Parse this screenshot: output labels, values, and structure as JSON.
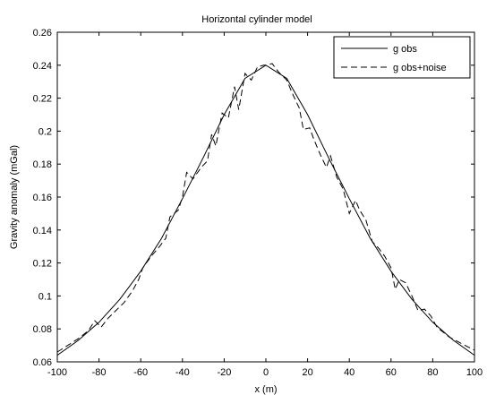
{
  "chart_data": {
    "type": "line",
    "title": "Horizontal cylinder model",
    "xlabel": "x (m)",
    "ylabel": "Gravity anomaly (mGal)",
    "xlim": [
      -100,
      100
    ],
    "ylim": [
      0.06,
      0.26
    ],
    "xticks": [
      -100,
      -80,
      -60,
      -40,
      -20,
      0,
      20,
      40,
      60,
      80,
      100
    ],
    "yticks": [
      0.06,
      0.08,
      0.1,
      0.12,
      0.14,
      0.16,
      0.18,
      0.2,
      0.22,
      0.24,
      0.26
    ],
    "xtick_labels": [
      "-100",
      "-80",
      "-60",
      "-40",
      "-20",
      "0",
      "20",
      "40",
      "60",
      "80",
      "100"
    ],
    "ytick_labels": [
      "0.06",
      "0.08",
      "0.1",
      "0.12",
      "0.14",
      "0.16",
      "0.18",
      "0.2",
      "0.22",
      "0.24",
      "0.26"
    ],
    "grid": false,
    "legend_position": "top-right",
    "series": [
      {
        "name": "g obs",
        "style": "solid",
        "color": "#000000",
        "x": [
          -100,
          -90,
          -80,
          -70,
          -60,
          -50,
          -40,
          -30,
          -20,
          -10,
          0,
          10,
          20,
          30,
          40,
          50,
          60,
          70,
          80,
          90,
          100
        ],
        "y": [
          0.064,
          0.073,
          0.084,
          0.098,
          0.115,
          0.135,
          0.159,
          0.184,
          0.21,
          0.232,
          0.24,
          0.232,
          0.21,
          0.184,
          0.159,
          0.135,
          0.115,
          0.098,
          0.084,
          0.073,
          0.064
        ]
      },
      {
        "name": "g obs+noise",
        "style": "dashed",
        "color": "#000000",
        "x": [
          -100,
          -95,
          -90,
          -85,
          -82,
          -79,
          -76,
          -72,
          -68,
          -64,
          -61,
          -59,
          -55,
          -51,
          -48,
          -46,
          -42,
          -40,
          -38,
          -35,
          -31,
          -28,
          -26,
          -24,
          -21,
          -18,
          -15,
          -13,
          -10,
          -7,
          -4,
          -1,
          0,
          3,
          6,
          10,
          13,
          16,
          18,
          21,
          23,
          26,
          29,
          31,
          34,
          37,
          40,
          43,
          45,
          48,
          51,
          54,
          57,
          60,
          62,
          64,
          67,
          70,
          73,
          76,
          79,
          82,
          85,
          88,
          91,
          94,
          97,
          100
        ],
        "y": [
          0.066,
          0.07,
          0.074,
          0.079,
          0.085,
          0.081,
          0.086,
          0.091,
          0.096,
          0.103,
          0.11,
          0.117,
          0.124,
          0.13,
          0.135,
          0.148,
          0.152,
          0.16,
          0.175,
          0.171,
          0.178,
          0.182,
          0.198,
          0.191,
          0.211,
          0.208,
          0.227,
          0.213,
          0.235,
          0.231,
          0.239,
          0.24,
          0.24,
          0.241,
          0.236,
          0.231,
          0.222,
          0.214,
          0.201,
          0.202,
          0.195,
          0.186,
          0.178,
          0.185,
          0.172,
          0.165,
          0.15,
          0.158,
          0.152,
          0.146,
          0.133,
          0.129,
          0.124,
          0.117,
          0.104,
          0.11,
          0.108,
          0.1,
          0.091,
          0.092,
          0.088,
          0.081,
          0.078,
          0.075,
          0.073,
          0.071,
          0.069,
          0.067
        ]
      }
    ]
  }
}
